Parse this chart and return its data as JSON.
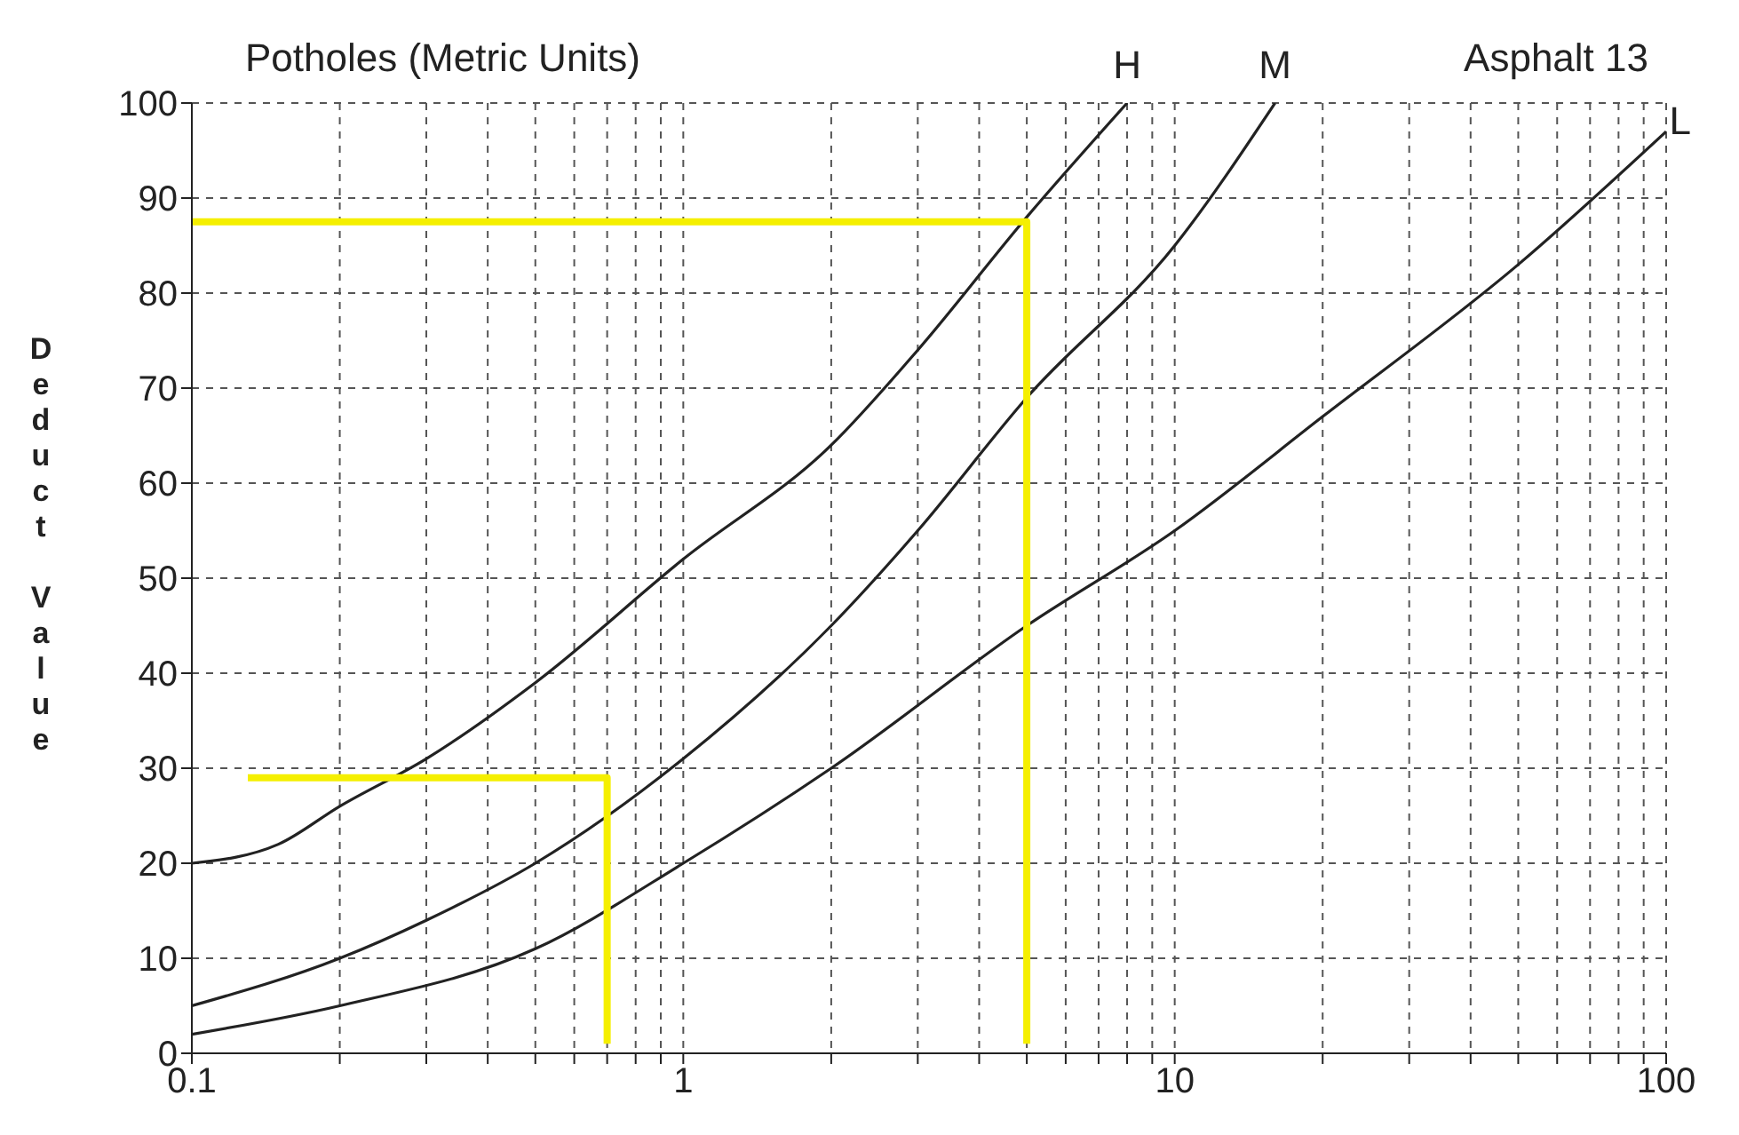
{
  "chart_data": {
    "type": "line",
    "title": "Potholes (Metric Units)",
    "ylabel": "Deduct Value",
    "log": "x",
    "grid": true,
    "marker": "none",
    "line_style": "solid",
    "xlim": [
      0.1,
      100
    ],
    "ylim": [
      0,
      100
    ],
    "xticks": [
      {
        "value": 0.1,
        "label": "0.1"
      },
      {
        "value": 0.2,
        "label": null
      },
      {
        "value": 0.3,
        "label": null
      },
      {
        "value": 0.4,
        "label": null
      },
      {
        "value": 0.5,
        "label": null
      },
      {
        "value": 0.6,
        "label": null
      },
      {
        "value": 0.7,
        "label": null
      },
      {
        "value": 0.8,
        "label": null
      },
      {
        "value": 0.9,
        "label": null
      },
      1,
      {
        "value": 2,
        "label": null
      },
      {
        "value": 3,
        "label": null
      },
      {
        "value": 4,
        "label": null
      },
      {
        "value": 5,
        "label": null
      },
      {
        "value": 6,
        "label": null
      },
      {
        "value": 7,
        "label": null
      },
      {
        "value": 8,
        "label": null
      },
      {
        "value": 9,
        "label": null
      },
      10,
      {
        "value": 20,
        "label": null
      },
      {
        "value": 30,
        "label": null
      },
      {
        "value": 40,
        "label": null
      },
      {
        "value": 50,
        "label": null
      },
      {
        "value": 60,
        "label": null
      },
      {
        "value": 70,
        "label": null
      },
      {
        "value": 80,
        "label": null
      },
      {
        "value": 90,
        "label": null
      },
      100
    ],
    "yticks": [
      0,
      10,
      20,
      30,
      40,
      50,
      60,
      70,
      80,
      90,
      100
    ],
    "series": [
      {
        "color": "#222222",
        "x": [
          0.1,
          0.15,
          0.2,
          0.3,
          0.5,
          1,
          2,
          3,
          5,
          8
        ],
        "values": [
          20,
          22,
          26,
          31,
          39,
          52,
          64,
          74,
          88,
          100
        ]
      },
      {
        "color": "#222222",
        "x": [
          0.1,
          0.2,
          0.3,
          0.5,
          1,
          2,
          3,
          5,
          10,
          16
        ],
        "values": [
          5,
          10,
          14,
          20,
          31,
          45,
          55,
          69,
          85,
          100
        ]
      },
      {
        "color": "#222222",
        "x": [
          0.1,
          0.2,
          0.5,
          1,
          2,
          5,
          10,
          20,
          50,
          100
        ],
        "values": [
          2,
          5,
          11,
          20,
          30,
          45,
          55,
          67,
          83,
          97
        ]
      },
      {
        "color": "#f5ef00",
        "x": [
          0.1,
          5,
          5
        ],
        "values": [
          87.5,
          87.5,
          1
        ]
      },
      {
        "color": "#f5ef00",
        "x": [
          0.13,
          0.7,
          0.7
        ],
        "values": [
          29,
          29,
          1
        ]
      }
    ],
    "annotations": [
      {
        "text": "H",
        "x": 8,
        "y": 100
      },
      {
        "text": "M",
        "x": 16,
        "y": 100
      },
      {
        "text": "L",
        "x": 100,
        "y": 97
      },
      "Asphalt 13"
    ]
  }
}
